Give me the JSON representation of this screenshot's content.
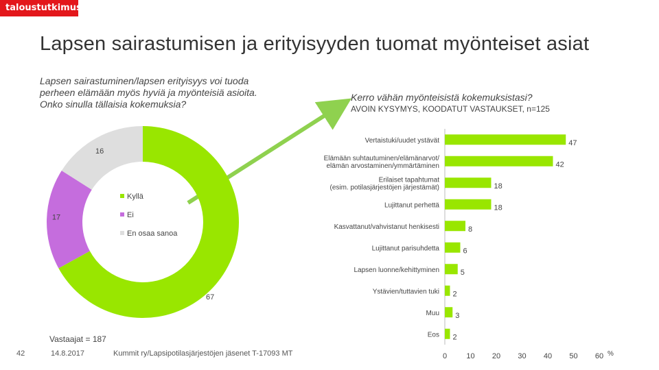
{
  "brand": "taloustutkimus",
  "title": "Lapsen sairastumisen ja erityisyyden tuomat myönteiset asiat",
  "question_left": "Lapsen sairastuminen/lapsen erityisyys voi tuoda perheen elämään myös hyviä ja myönteisiä asioita. Onko sinulla tällaisia kokemuksia?",
  "question_right": "Kerro vähän myönteisistä kokemuksistasi?",
  "question_right_sub": "AVOIN KYSYMYS, KOODATUT VASTAUKSET, n=125",
  "respondents": "Vastaajat = 187",
  "footer": {
    "page": "42",
    "date": "14.8.2017",
    "source": "Kummit ry/Lapsipotilasjärjestöjen jäsenet T-17093 MT"
  },
  "colors": {
    "brand": "#e3171b",
    "green": "#99e600",
    "purple": "#c56ddd",
    "grey": "#dedede",
    "arrow": "#8fd14f"
  },
  "chart_data": [
    {
      "type": "pie",
      "variant": "donut",
      "unit": "%",
      "labels": [
        "Kyllä",
        "Ei",
        "En osaa sanoa"
      ],
      "values": [
        67,
        17,
        16
      ],
      "colors": [
        "#99e600",
        "#c56ddd",
        "#dedede"
      ],
      "legend": "center"
    },
    {
      "type": "bar",
      "orientation": "horizontal",
      "unit": "%",
      "categories": [
        "Vertaistuki/uudet ystävät",
        "Elämään suhtautuminen/elämänarvot/ elämän arvostaminen/ymmärtäminen",
        "Erilaiset tapahtumat (esim. potilasjärjestöjen järjestämät)",
        "Lujittanut perhettä",
        "Kasvattanut/vahvistanut henkisesti",
        "Lujittanut parisuhdetta",
        "Lapsen luonne/kehittyminen",
        "Ystävien/tuttavien tuki",
        "Muu",
        "Eos"
      ],
      "values": [
        47,
        42,
        18,
        18,
        8,
        6,
        5,
        2,
        3,
        2
      ],
      "xlim": [
        0,
        60
      ],
      "xticks": [
        0,
        10,
        20,
        30,
        40,
        50,
        60
      ],
      "color": "#99e600"
    }
  ]
}
